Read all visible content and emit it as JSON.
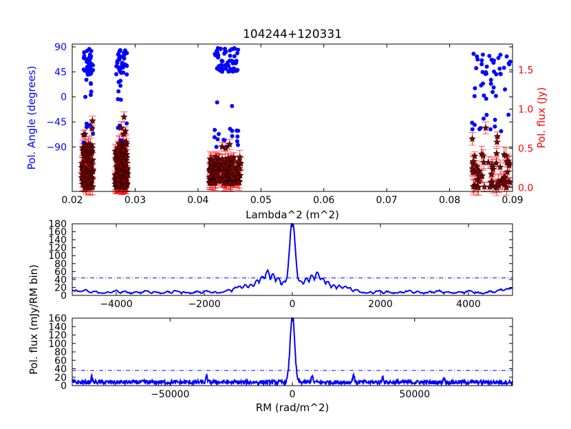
{
  "title": "104244+120331",
  "colors": {
    "angle": "#0000ff",
    "flux_edge": "#ff0000",
    "flux_face": "#800000",
    "spectrum": "#0000ff",
    "axes": "#000000"
  },
  "chart_data": [
    {
      "id": "top",
      "type": "scatter",
      "title": "104244+120331",
      "xlabel": "Lambda^2 (m^2)",
      "ylabel_left": "Pol. Angle (degrees)",
      "ylabel_right": "Pol. flux (Jy)",
      "xlim": [
        0.02,
        0.09
      ],
      "ylim_left": [
        -170,
        95
      ],
      "ylim_right": [
        -0.05,
        1.83
      ],
      "xticks": [
        0.02,
        0.03,
        0.04,
        0.05,
        0.06,
        0.07,
        0.08,
        0.09
      ],
      "xtick_labels": [
        "0.02",
        "0.03",
        "0.04",
        "0.05",
        "0.06",
        "0.07",
        "0.08",
        "0.09"
      ],
      "yticks_left": [
        90,
        45,
        0,
        -45,
        -90
      ],
      "ytick_labels_left": [
        "90",
        "45",
        "0",
        "−45",
        "−90"
      ],
      "yticks_right": [
        0.0,
        0.5,
        1.0,
        1.5
      ],
      "ytick_labels_right": [
        "0.0",
        "0.5",
        "1.0",
        "1.5"
      ],
      "series": [
        {
          "name": "Pol. Angle (degrees)",
          "marker": "circle",
          "color": "#0000ff",
          "clusters": [
            {
              "x": [
                0.0217,
                0.0233
              ],
              "y_ranges": [
                [
                  40,
                  88,
                  38
                ],
                [
                  -10,
                  35,
                  6
                ],
                [
                  -100,
                  -40,
                  8
                ]
              ]
            },
            {
              "x": [
                0.027,
                0.0287
              ],
              "y_ranges": [
                [
                  40,
                  88,
                  42
                ],
                [
                  -10,
                  35,
                  6
                ],
                [
                  -100,
                  -40,
                  9
                ]
              ]
            },
            {
              "x": [
                0.0425,
                0.0465
              ],
              "y_ranges": [
                [
                  45,
                  88,
                  60
                ],
                [
                  -25,
                  0,
                  2
                ],
                [
                  -90,
                  -55,
                  16
                ]
              ]
            },
            {
              "x": [
                0.0835,
                0.0898
              ],
              "y_ranges": [
                [
                  40,
                  78,
                  28
                ],
                [
                  -5,
                  35,
                  12
                ],
                [
                  -70,
                  -30,
                  12
                ]
              ]
            }
          ]
        },
        {
          "name": "Pol. flux (Jy)",
          "marker": "star",
          "color": "#800000",
          "error_color": "#ff0000",
          "clusters": [
            {
              "x": [
                0.0215,
                0.0233
              ],
              "y_range": [
                0.0,
                0.55
              ],
              "n": 110,
              "extra": [
                0.67,
                0.75,
                0.68,
                0.85
              ]
            },
            {
              "x": [
                0.0268,
                0.0288
              ],
              "y_range": [
                0.0,
                0.58
              ],
              "n": 120,
              "extra": [
                0.68,
                0.72,
                0.76,
                0.9
              ]
            },
            {
              "x": [
                0.0418,
                0.0468
              ],
              "y_range": [
                0.05,
                0.4
              ],
              "n": 140,
              "extra": [
                0.5,
                0.52,
                0.55
              ]
            },
            {
              "x": [
                0.0835,
                0.0898
              ],
              "y_range": [
                0.0,
                0.45
              ],
              "n": 60,
              "extra": [
                0.58,
                0.62,
                0.65,
                0.76
              ]
            }
          ]
        }
      ]
    },
    {
      "id": "mid",
      "type": "line",
      "ylabel": "Pol. flux (mJy/RM bin)",
      "xlim": [
        -5000,
        5000
      ],
      "ylim": [
        0,
        180
      ],
      "xticks": [
        -4000,
        -2000,
        0,
        2000,
        4000
      ],
      "xtick_labels": [
        "−4000",
        "−2000",
        "0",
        "2000",
        "4000"
      ],
      "yticks": [
        0,
        20,
        40,
        60,
        80,
        100,
        120,
        140,
        160,
        180
      ],
      "ytick_labels": [
        "0",
        "20",
        "40",
        "60",
        "80",
        "100",
        "120",
        "140",
        "160",
        "180"
      ],
      "threshold": 44,
      "peak": {
        "x": 0,
        "y": 170,
        "width": 60
      },
      "sidelobes": [
        {
          "x": -580,
          "y": 38,
          "w": 160
        },
        {
          "x": -300,
          "y": 28,
          "w": 180
        },
        {
          "x": 300,
          "y": 30,
          "w": 180
        },
        {
          "x": 580,
          "y": 34,
          "w": 150
        },
        {
          "x": -1000,
          "y": 20,
          "w": 250
        },
        {
          "x": 1000,
          "y": 18,
          "w": 250
        }
      ],
      "noise_level": 8,
      "edge_rise": {
        "left": 12,
        "right": 18
      }
    },
    {
      "id": "bot",
      "type": "line",
      "xlabel": "RM (rad/m^2)",
      "ylim": [
        0,
        160
      ],
      "xlim": [
        -90000,
        90000
      ],
      "xticks": [
        -50000,
        0,
        50000
      ],
      "xtick_labels": [
        "−50000",
        "0",
        "50000"
      ],
      "yticks": [
        0,
        20,
        40,
        60,
        80,
        100,
        120,
        140,
        160
      ],
      "ytick_labels": [
        "0",
        "20",
        "40",
        "60",
        "80",
        "100",
        "120",
        "140",
        "160"
      ],
      "threshold": 36,
      "peak": {
        "x": 0,
        "y": 160,
        "width": 900
      },
      "noise_level": 10,
      "spikes": [
        {
          "x": -35000,
          "y": 22
        },
        {
          "x": 8000,
          "y": 25
        },
        {
          "x": 25000,
          "y": 28
        },
        {
          "x": 37000,
          "y": 22
        },
        {
          "x": -82000,
          "y": 20
        },
        {
          "x": 62000,
          "y": 20
        }
      ]
    }
  ]
}
